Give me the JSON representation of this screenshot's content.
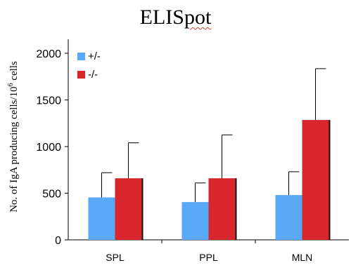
{
  "chart_data": {
    "type": "bar",
    "title_prefix": "ELIS",
    "title_squiggle": "pot",
    "ylabel_prefix": "No. of IgA producing cells/10",
    "ylabel_sup": "6",
    "ylabel_suffix": " cells",
    "categories": [
      "SPL",
      "PPL",
      "MLN"
    ],
    "ylim": [
      0,
      2150
    ],
    "yticks": [
      0,
      500,
      1000,
      1500,
      2000
    ],
    "grid": false,
    "legend_position": "top-left",
    "series": [
      {
        "name": "+/-",
        "color": "#5aa9f7",
        "values": [
          455,
          405,
          480
        ],
        "errors": [
          265,
          205,
          250
        ]
      },
      {
        "name": "-/-",
        "color": "#d8262c",
        "values": [
          660,
          660,
          1285
        ],
        "errors": [
          380,
          465,
          550
        ]
      }
    ]
  }
}
